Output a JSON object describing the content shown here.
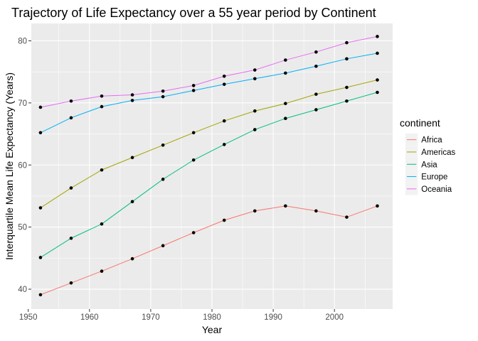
{
  "chart_data": {
    "type": "line",
    "title": "Trajectory of Life Expectancy over a 55 year period by Continent",
    "xlabel": "Year",
    "ylabel": "Interquartile Mean Life Expectancy (Years)",
    "xlim": [
      1950.5,
      2009.5
    ],
    "ylim": [
      36.8,
      82.8
    ],
    "x_ticks": [
      1950,
      1960,
      1970,
      1980,
      1990,
      2000
    ],
    "y_ticks": [
      40,
      50,
      60,
      70,
      80
    ],
    "grid": true,
    "points_shown": true,
    "legend": {
      "title": "continent",
      "position": "right"
    },
    "x": [
      1952,
      1957,
      1962,
      1967,
      1972,
      1977,
      1982,
      1987,
      1992,
      1997,
      2002,
      2007
    ],
    "series": [
      {
        "name": "Africa",
        "color": "#F8766D",
        "values": [
          39.1,
          41.0,
          42.9,
          44.9,
          47.0,
          49.1,
          51.1,
          52.6,
          53.4,
          52.6,
          51.6,
          53.4
        ]
      },
      {
        "name": "Americas",
        "color": "#A3A500",
        "values": [
          53.1,
          56.3,
          59.2,
          61.2,
          63.2,
          65.2,
          67.1,
          68.7,
          69.9,
          71.4,
          72.5,
          73.7
        ]
      },
      {
        "name": "Asia",
        "color": "#00BF7D",
        "values": [
          45.1,
          48.2,
          50.5,
          54.1,
          57.7,
          60.8,
          63.3,
          65.7,
          67.5,
          68.9,
          70.3,
          71.7
        ]
      },
      {
        "name": "Europe",
        "color": "#00B0F6",
        "values": [
          65.2,
          67.6,
          69.4,
          70.4,
          71.0,
          72.0,
          73.0,
          73.9,
          74.8,
          75.9,
          77.1,
          78.0
        ]
      },
      {
        "name": "Oceania",
        "color": "#E76BF3",
        "values": [
          69.3,
          70.3,
          71.1,
          71.3,
          71.9,
          72.8,
          74.3,
          75.3,
          76.9,
          78.2,
          79.7,
          80.7
        ]
      }
    ]
  }
}
